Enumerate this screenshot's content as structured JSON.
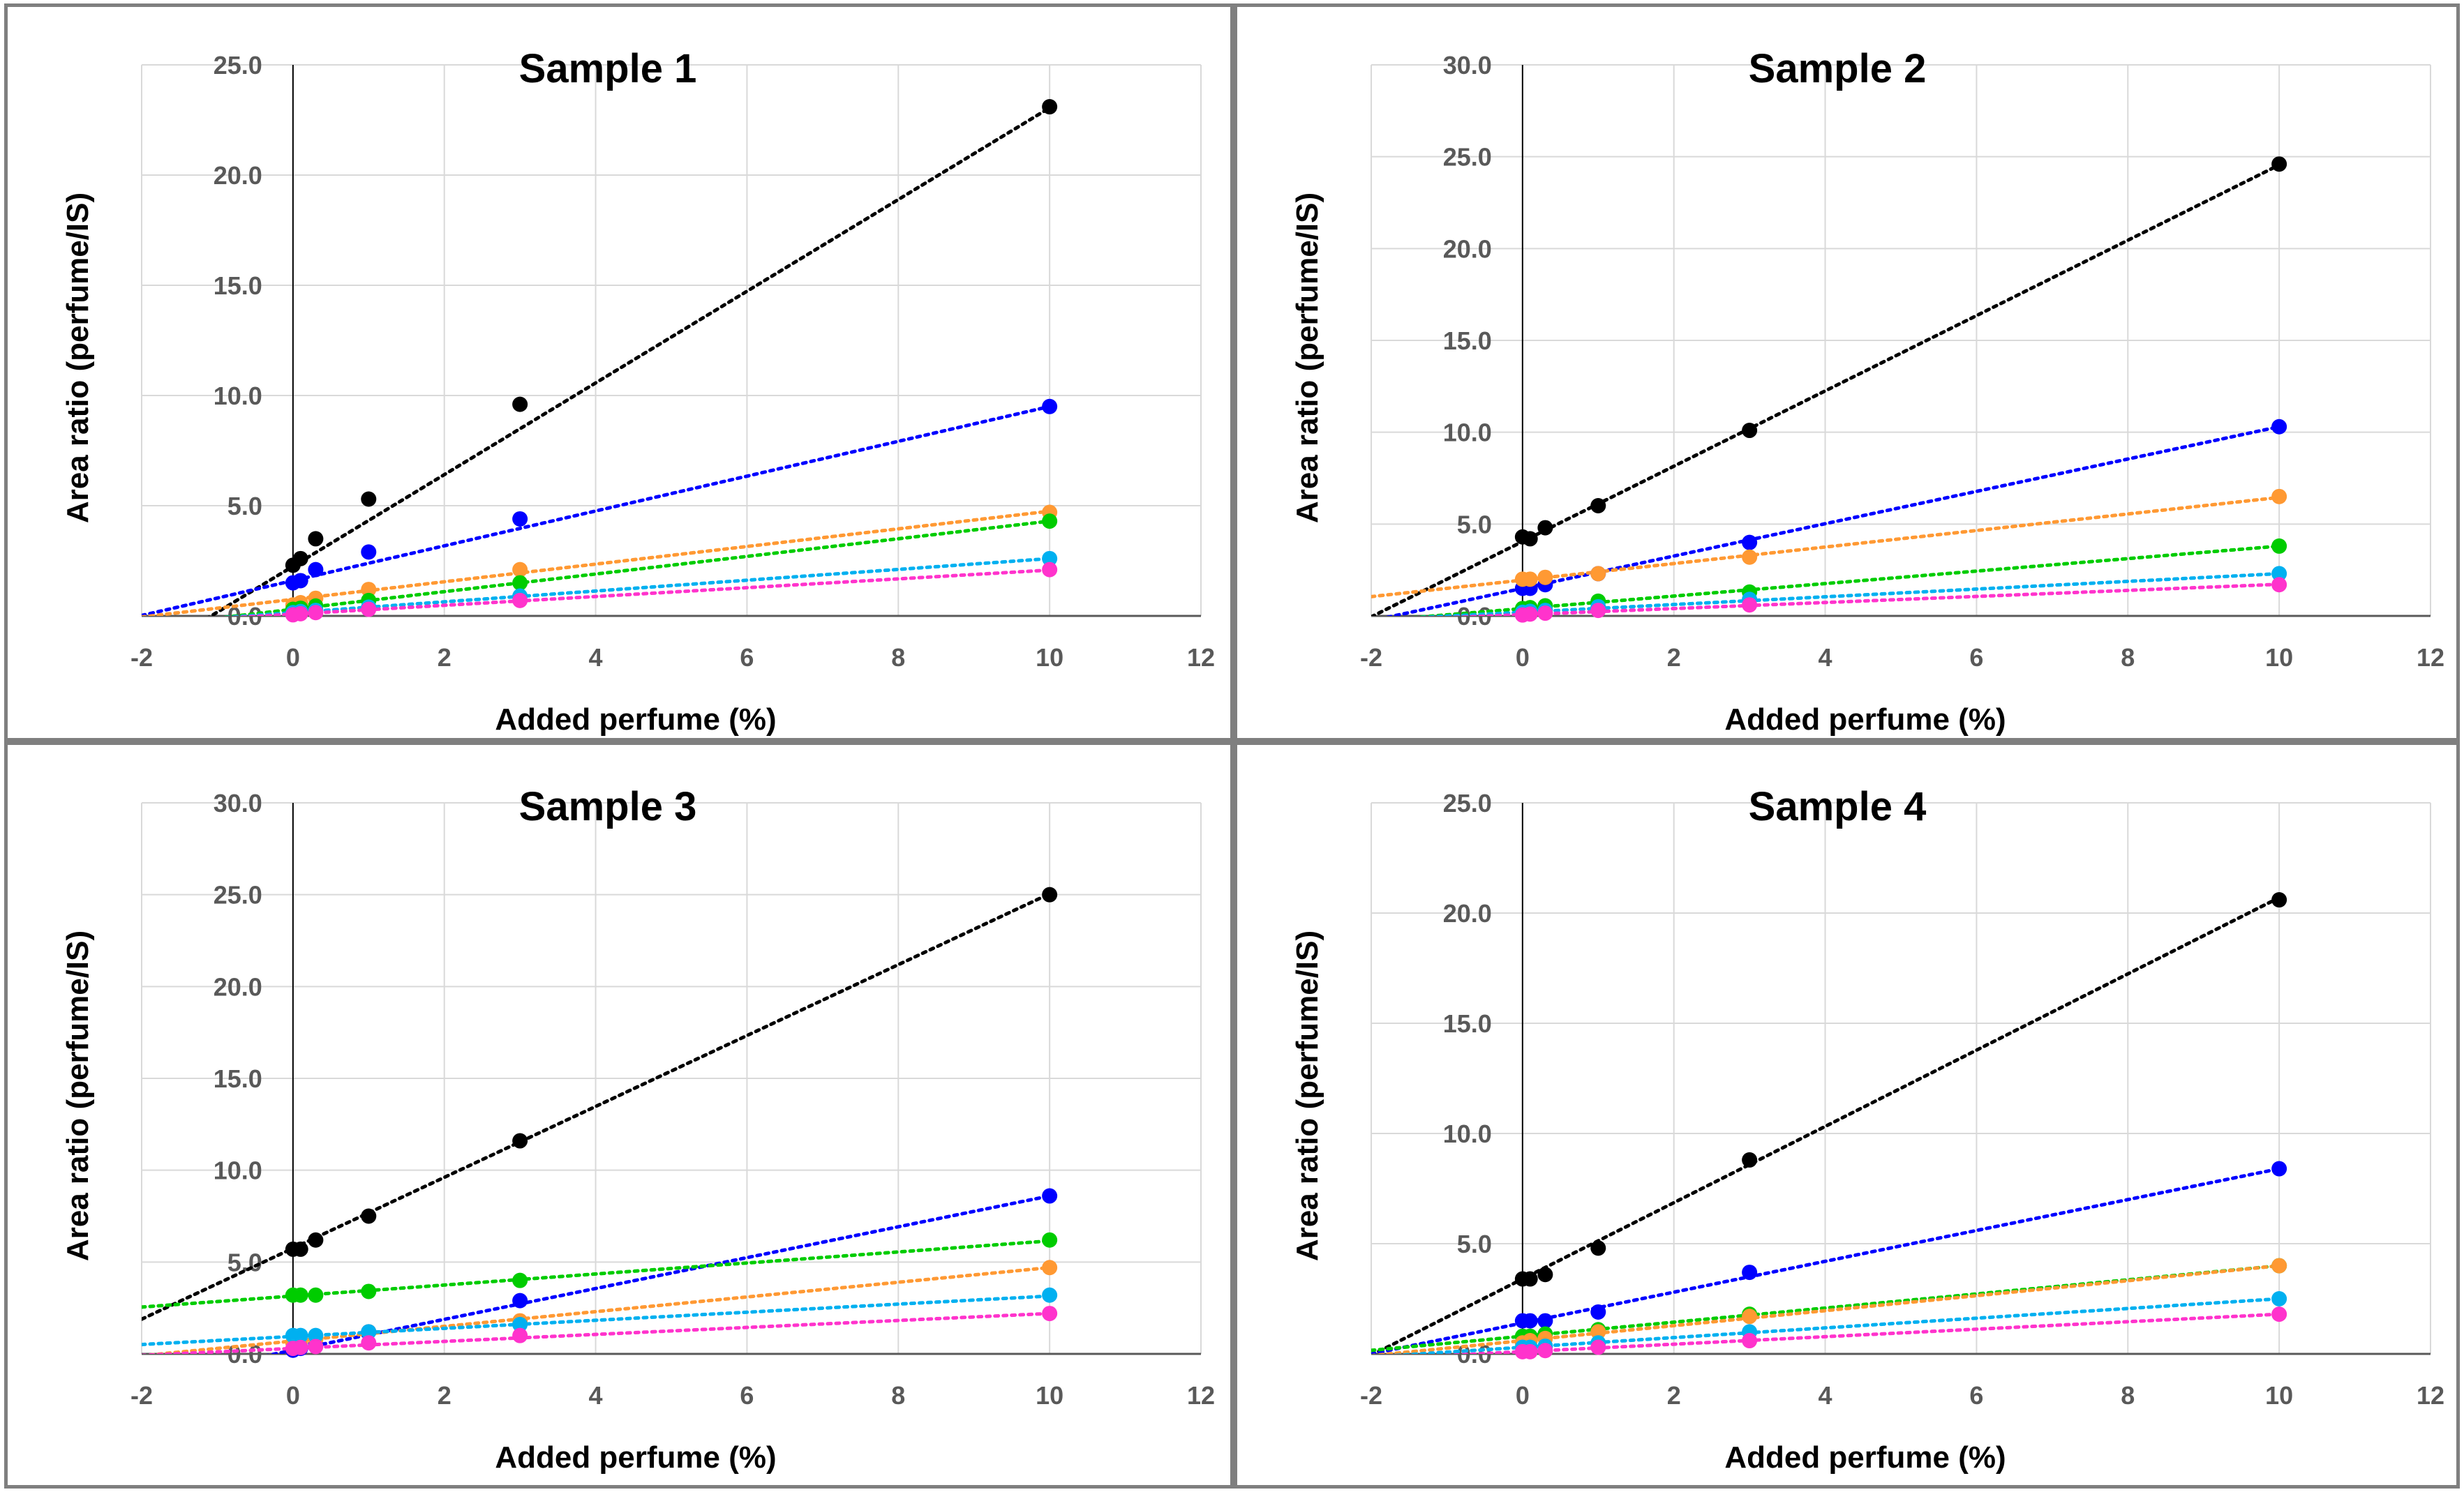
{
  "chart_data": [
    {
      "type": "scatter",
      "title": "Sample 1",
      "xlabel": "Added perfume (%)",
      "ylabel": "Area ratio (perfume/IS)",
      "xlim": [
        -2,
        12
      ],
      "ylim": [
        0,
        25
      ],
      "xticks": [
        "-2",
        "0",
        "2",
        "4",
        "6",
        "8",
        "10",
        "12"
      ],
      "yticks": [
        "0.0",
        "5.0",
        "10.0",
        "15.0",
        "20.0",
        "25.0"
      ],
      "grid": true,
      "x": [
        0,
        0.1,
        0.3,
        1,
        3,
        10
      ],
      "series": [
        {
          "color": "#000000",
          "values": [
            2.3,
            2.6,
            3.5,
            5.3,
            9.6,
            23.1
          ],
          "trend": [
            2.25,
            2.08
          ]
        },
        {
          "color": "#0000ff",
          "values": [
            1.5,
            1.6,
            2.1,
            2.9,
            4.4,
            9.5
          ],
          "trend": [
            1.6,
            0.79
          ]
        },
        {
          "color": "#ff9933",
          "values": [
            0.5,
            0.6,
            0.8,
            1.2,
            2.1,
            4.7
          ],
          "trend": [
            0.75,
            0.4
          ]
        },
        {
          "color": "#00cc00",
          "values": [
            0.3,
            0.35,
            0.45,
            0.7,
            1.5,
            4.3
          ],
          "trend": [
            0.3,
            0.4
          ]
        },
        {
          "color": "#00b0f0",
          "values": [
            0.15,
            0.2,
            0.25,
            0.4,
            0.9,
            2.6
          ],
          "trend": [
            0.15,
            0.245
          ]
        },
        {
          "color": "#ff33cc",
          "values": [
            0.05,
            0.1,
            0.15,
            0.3,
            0.7,
            2.1
          ],
          "trend": [
            0.08,
            0.2
          ]
        }
      ]
    },
    {
      "type": "scatter",
      "title": "Sample 2",
      "xlabel": "Added perfume (%)",
      "ylabel": "Area ratio (perfume/IS)",
      "xlim": [
        -2,
        12
      ],
      "ylim": [
        0,
        30
      ],
      "xticks": [
        "-2",
        "0",
        "2",
        "4",
        "6",
        "8",
        "10",
        "12"
      ],
      "yticks": [
        "0.0",
        "5.0",
        "10.0",
        "15.0",
        "20.0",
        "25.0",
        "30.0"
      ],
      "grid": true,
      "x": [
        0,
        0.1,
        0.3,
        1,
        3,
        10
      ],
      "series": [
        {
          "color": "#000000",
          "values": [
            4.3,
            4.2,
            4.8,
            6.0,
            10.1,
            24.6
          ],
          "trend": [
            4.05,
            2.05
          ]
        },
        {
          "color": "#0000ff",
          "values": [
            1.5,
            1.5,
            1.7,
            2.3,
            4.0,
            10.3
          ],
          "trend": [
            1.5,
            0.88
          ]
        },
        {
          "color": "#ff9933",
          "values": [
            2.0,
            2.0,
            2.1,
            2.3,
            3.2,
            6.5
          ],
          "trend": [
            1.95,
            0.45
          ]
        },
        {
          "color": "#00cc00",
          "values": [
            0.4,
            0.45,
            0.55,
            0.8,
            1.3,
            3.8
          ],
          "trend": [
            0.4,
            0.34
          ]
        },
        {
          "color": "#00b0f0",
          "values": [
            0.2,
            0.25,
            0.3,
            0.5,
            0.9,
            2.3
          ],
          "trend": [
            0.2,
            0.21
          ]
        },
        {
          "color": "#ff33cc",
          "values": [
            0.05,
            0.1,
            0.15,
            0.3,
            0.6,
            1.7
          ],
          "trend": [
            0.07,
            0.165
          ]
        }
      ]
    },
    {
      "type": "scatter",
      "title": "Sample 3",
      "xlabel": "Added perfume (%)",
      "ylabel": "Area ratio (perfume/IS)",
      "xlim": [
        -2,
        12
      ],
      "ylim": [
        0,
        30
      ],
      "xticks": [
        "-2",
        "0",
        "2",
        "4",
        "6",
        "8",
        "10",
        "12"
      ],
      "yticks": [
        "0.0",
        "5.0",
        "10.0",
        "15.0",
        "20.0",
        "25.0",
        "30.0"
      ],
      "grid": true,
      "x": [
        0,
        0.1,
        0.3,
        1,
        3,
        10
      ],
      "series": [
        {
          "color": "#000000",
          "values": [
            5.7,
            5.7,
            6.2,
            7.5,
            11.6,
            25.0
          ],
          "trend": [
            5.75,
            1.93
          ]
        },
        {
          "color": "#0000ff",
          "values": [
            0.2,
            0.3,
            0.5,
            1.2,
            2.9,
            8.6
          ],
          "trend": [
            0.2,
            0.84
          ]
        },
        {
          "color": "#00cc00",
          "values": [
            3.2,
            3.2,
            3.2,
            3.4,
            4.0,
            6.2
          ],
          "trend": [
            3.15,
            0.3
          ]
        },
        {
          "color": "#ff9933",
          "values": [
            0.6,
            0.7,
            0.8,
            1.2,
            1.8,
            4.7
          ],
          "trend": [
            0.7,
            0.4
          ]
        },
        {
          "color": "#00b0f0",
          "values": [
            1.0,
            1.0,
            1.0,
            1.2,
            1.6,
            3.2
          ],
          "trend": [
            0.95,
            0.22
          ]
        },
        {
          "color": "#ff33cc",
          "values": [
            0.3,
            0.35,
            0.4,
            0.6,
            1.0,
            2.2
          ],
          "trend": [
            0.3,
            0.19
          ]
        }
      ]
    },
    {
      "type": "scatter",
      "title": "Sample 4",
      "xlabel": "Added perfume (%)",
      "ylabel": "Area ratio (perfume/IS)",
      "xlim": [
        -2,
        12
      ],
      "ylim": [
        0,
        25
      ],
      "xticks": [
        "-2",
        "0",
        "2",
        "4",
        "6",
        "8",
        "10",
        "12"
      ],
      "yticks": [
        "0.0",
        "5.0",
        "10.0",
        "15.0",
        "20.0",
        "25.0"
      ],
      "grid": true,
      "x": [
        0,
        0.1,
        0.3,
        1,
        3,
        10
      ],
      "series": [
        {
          "color": "#000000",
          "values": [
            3.4,
            3.4,
            3.6,
            4.8,
            8.8,
            20.6
          ],
          "trend": [
            3.4,
            1.73
          ]
        },
        {
          "color": "#0000ff",
          "values": [
            1.5,
            1.5,
            1.5,
            1.9,
            3.7,
            8.4
          ],
          "trend": [
            1.4,
            0.7
          ]
        },
        {
          "color": "#00cc00",
          "values": [
            0.8,
            0.8,
            0.9,
            1.1,
            1.8,
            4.0
          ],
          "trend": [
            0.8,
            0.32
          ]
        },
        {
          "color": "#ff9933",
          "values": [
            0.5,
            0.6,
            0.7,
            1.0,
            1.7,
            4.0
          ],
          "trend": [
            0.6,
            0.34
          ]
        },
        {
          "color": "#00b0f0",
          "values": [
            0.3,
            0.3,
            0.35,
            0.5,
            1.0,
            2.5
          ],
          "trend": [
            0.3,
            0.22
          ]
        },
        {
          "color": "#ff33cc",
          "values": [
            0.1,
            0.1,
            0.15,
            0.3,
            0.6,
            1.8
          ],
          "trend": [
            0.1,
            0.17
          ]
        }
      ]
    }
  ]
}
